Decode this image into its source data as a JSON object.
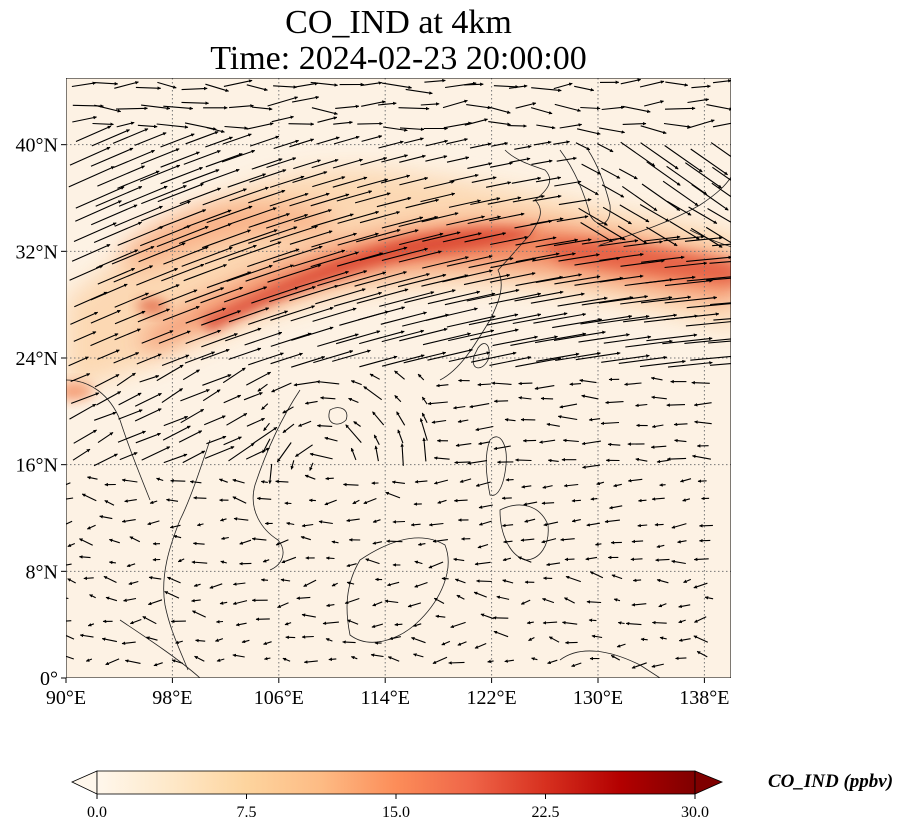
{
  "title": {
    "line1": "CO_IND at 4km",
    "line2": "Time: 2024-02-23 20:00:00"
  },
  "map": {
    "lon_range": [
      90,
      140
    ],
    "lat_range": [
      0,
      45
    ],
    "lon_ticks": [
      {
        "value": 90,
        "label": "90°E"
      },
      {
        "value": 98,
        "label": "98°E"
      },
      {
        "value": 106,
        "label": "106°E"
      },
      {
        "value": 114,
        "label": "114°E"
      },
      {
        "value": 122,
        "label": "122°E"
      },
      {
        "value": 130,
        "label": "130°E"
      },
      {
        "value": 138,
        "label": "138°E"
      }
    ],
    "lat_ticks": [
      {
        "value": 0,
        "label": "0°"
      },
      {
        "value": 8,
        "label": "8°N"
      },
      {
        "value": 16,
        "label": "16°N"
      },
      {
        "value": 24,
        "label": "24°N"
      },
      {
        "value": 32,
        "label": "32°N"
      },
      {
        "value": 40,
        "label": "40°N"
      }
    ],
    "gridlines": true,
    "field": "CO_IND",
    "colormap": "OrRd"
  },
  "colorbar": {
    "label": "CO_IND (ppbv)",
    "min": 0,
    "max": 30,
    "ticks": [
      {
        "value": 0,
        "label": "0.0"
      },
      {
        "value": 7.5,
        "label": "7.5"
      },
      {
        "value": 15,
        "label": "15.0"
      },
      {
        "value": 22.5,
        "label": "22.5"
      },
      {
        "value": 30,
        "label": "30.0"
      }
    ],
    "extend": "both",
    "colors": [
      "#fff7ec",
      "#fee8c8",
      "#fdd49e",
      "#fdbb84",
      "#fc8d59",
      "#ef6548",
      "#d7301f",
      "#b30000",
      "#7f0000"
    ]
  }
}
